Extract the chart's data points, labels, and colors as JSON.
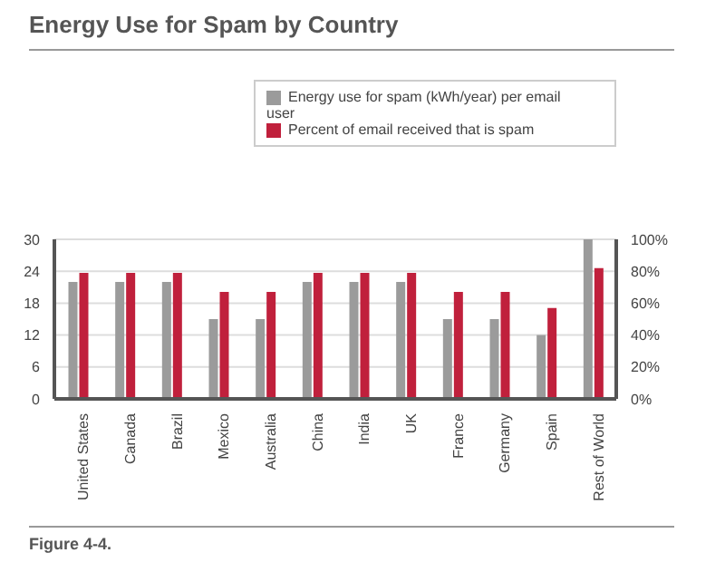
{
  "chart_data": {
    "type": "bar",
    "title": "Energy Use for Spam by Country",
    "categories": [
      "United States",
      "Canada",
      "Brazil",
      "Mexico",
      "Australia",
      "China",
      "India",
      "UK",
      "France",
      "Germany",
      "Spain",
      "Rest of World"
    ],
    "series": [
      {
        "name": "Energy use for spam (kWh/year) per email user",
        "color": "#9b9b9b",
        "values": [
          22,
          22,
          22,
          15,
          15,
          22,
          22,
          22,
          15,
          15,
          12,
          30
        ]
      },
      {
        "name": "Percent of email received that is spam",
        "color": "#c0203c",
        "axis": "y2",
        "values": [
          79,
          79,
          79,
          67,
          67,
          79,
          79,
          79,
          67,
          67,
          57,
          82
        ]
      }
    ],
    "ylim": [
      0,
      30
    ],
    "yticks": [
      0,
      6,
      12,
      18,
      24,
      30
    ],
    "y2lim": [
      0,
      100
    ],
    "y2ticks": [
      {
        "value": 0,
        "label": "0%"
      },
      {
        "value": 20,
        "label": "20%"
      },
      {
        "value": 40,
        "label": "40%"
      },
      {
        "value": 60,
        "label": "60%"
      },
      {
        "value": 80,
        "label": "80%"
      },
      {
        "value": 100,
        "label": "100%"
      }
    ],
    "grid": "y",
    "legend": "top right",
    "annotations": [
      "Figure 4-4."
    ]
  }
}
